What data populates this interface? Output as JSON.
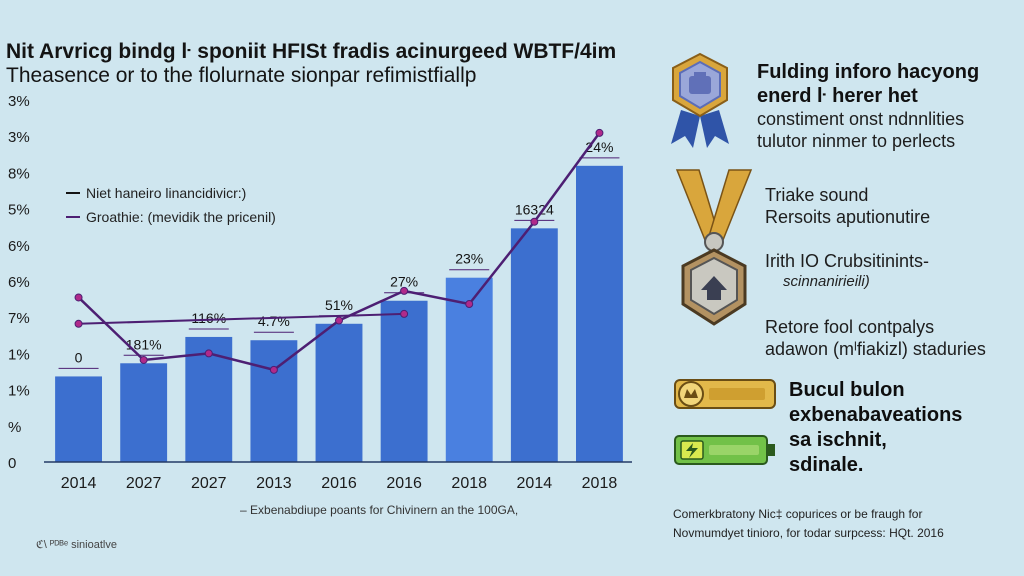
{
  "title": {
    "line1": "Nit Arvricg bindg ŀ sponiit HFISt fradis acinurgeed WBTF/4im",
    "line2": "Theasence or to the flolurnate sionpar refimistfiallp"
  },
  "chart_data": {
    "type": "bar",
    "categories": [
      "2014",
      "2027",
      "2027",
      "2013",
      "2016",
      "2016",
      "2018",
      "2014",
      "2018"
    ],
    "series": [
      {
        "name": "Niet haneiro linancidivicr:)",
        "type": "bar",
        "values": [
          1.3,
          1.5,
          1.9,
          1.85,
          2.1,
          2.45,
          2.8,
          3.55,
          4.5
        ]
      },
      {
        "name": "Groathie: (mevidik the pricenil)",
        "type": "line",
        "values": [
          2.5,
          1.55,
          1.65,
          1.4,
          2.15,
          2.6,
          2.4,
          3.65,
          5.0
        ]
      },
      {
        "name": "",
        "type": "line",
        "values": [
          2.1,
          null,
          null,
          null,
          null,
          2.25,
          null,
          null,
          null
        ]
      }
    ],
    "bar_labels": [
      "0",
      "181%",
      "116%",
      "4.7%",
      "51%",
      "27%",
      "23%",
      "16324",
      "24%"
    ],
    "ytick_labels": [
      "0",
      "%",
      "1%",
      "1%",
      "7%",
      "6%",
      "6%",
      "5%",
      "8%",
      "3%",
      "3%"
    ],
    "ylim": [
      0,
      5.5
    ],
    "grid": false,
    "legend_position": "top-left",
    "colors": {
      "bar": "#3c6fcf",
      "bar_highlight": "#4a80e0",
      "line": "#4d1f73"
    }
  },
  "footnote": "Exbenabdiupe poants for Chivinern an the 100GA,",
  "source": "ℭ\\ ᴾᴰᴮᵉ sinioatlve",
  "panel": {
    "block1": {
      "title_lines": [
        "Fulding inforo hacyong",
        "enerd ŀ herer het"
      ],
      "text_lines": [
        "constiment onst ndnnlities",
        "tulutor ninmer to perlects"
      ],
      "icon": "ribbon-badge-icon"
    },
    "block2": {
      "text_lines": [
        "Triake sound",
        "Rersoits aputionutire"
      ],
      "icon": "medal-icon"
    },
    "block3": {
      "text_lines": [
        "Irith IO Crubsitinints-"
      ],
      "italic": "scinnanirieili)"
    },
    "block4": {
      "text_lines": [
        "Retore fool contpalys",
        "adawon (mˡfiakizl) staduries"
      ]
    },
    "block5": {
      "title_lines": [
        "Bucul bulon",
        "exbenabaveations",
        "sa ischnit,",
        "sdinale."
      ],
      "icons": [
        "ticket-icon",
        "battery-icon"
      ]
    },
    "credit_lines": [
      "Comerkbratony Nic‡ copurices or be fraugh for",
      "Novmumdyet tinioro, for todar surpcess: HQt. 2016"
    ]
  }
}
